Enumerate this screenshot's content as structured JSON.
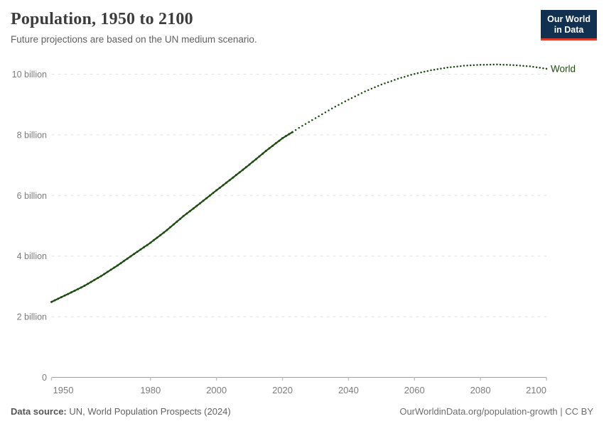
{
  "header": {
    "title": "Population, 1950 to 2100",
    "subtitle": "Future projections are based on the UN medium scenario."
  },
  "logo": {
    "line1": "Our World",
    "line2": "in Data"
  },
  "footer": {
    "source_label": "Data source:",
    "source_text": "UN, World Population Prospects (2024)",
    "credit": "OurWorldinData.org/population-growth | CC BY"
  },
  "colors": {
    "series": "#1e4c11",
    "grid": "#e2e2e2",
    "axis": "#a1a1a1",
    "tick": "#c2c2c2",
    "tick_text": "#7d7d7d",
    "logo_bg": "#12304f",
    "logo_accent": "#dc3a2a"
  },
  "chart_data": {
    "type": "line",
    "title": "Population, 1950 to 2100",
    "subtitle": "Future projections are based on the UN medium scenario.",
    "xlabel": "",
    "ylabel": "",
    "xlim": [
      1950,
      2100
    ],
    "ylim": [
      0,
      10.5
    ],
    "grid": "horizontal-dashed",
    "legend": "end-of-line-label",
    "x_ticks": [
      1950,
      1980,
      2000,
      2020,
      2040,
      2060,
      2080,
      2100
    ],
    "y_ticks": [
      {
        "value": 0,
        "label": "0"
      },
      {
        "value": 2,
        "label": "2 billion"
      },
      {
        "value": 4,
        "label": "4 billion"
      },
      {
        "value": 6,
        "label": "6 billion"
      },
      {
        "value": 8,
        "label": "8 billion"
      },
      {
        "value": 10,
        "label": "10 billion"
      }
    ],
    "series": [
      {
        "name": "World",
        "color": "#1e4c11",
        "unit": "billion people",
        "historical_style": "solid-with-markers",
        "projection_style": "dotted",
        "historical": [
          [
            1950,
            2.49
          ],
          [
            1955,
            2.75
          ],
          [
            1960,
            3.02
          ],
          [
            1965,
            3.34
          ],
          [
            1970,
            3.69
          ],
          [
            1975,
            4.07
          ],
          [
            1980,
            4.44
          ],
          [
            1985,
            4.86
          ],
          [
            1990,
            5.32
          ],
          [
            1995,
            5.74
          ],
          [
            2000,
            6.17
          ],
          [
            2005,
            6.59
          ],
          [
            2010,
            7.02
          ],
          [
            2015,
            7.47
          ],
          [
            2020,
            7.89
          ],
          [
            2023,
            8.09
          ]
        ],
        "projection": [
          [
            2023,
            8.09
          ],
          [
            2025,
            8.23
          ],
          [
            2030,
            8.55
          ],
          [
            2035,
            8.87
          ],
          [
            2040,
            9.16
          ],
          [
            2045,
            9.43
          ],
          [
            2050,
            9.66
          ],
          [
            2055,
            9.85
          ],
          [
            2060,
            10.01
          ],
          [
            2065,
            10.13
          ],
          [
            2070,
            10.22
          ],
          [
            2075,
            10.28
          ],
          [
            2080,
            10.31
          ],
          [
            2085,
            10.32
          ],
          [
            2090,
            10.3
          ],
          [
            2095,
            10.26
          ],
          [
            2100,
            10.18
          ]
        ]
      }
    ]
  }
}
